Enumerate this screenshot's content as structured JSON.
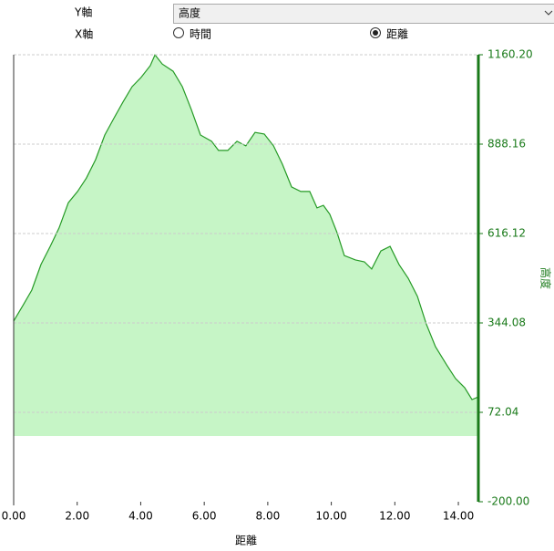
{
  "controls": {
    "y_axis_label": "Y軸",
    "y_axis_value": "高度",
    "x_axis_label": "X軸",
    "x_options": [
      {
        "label": "時間",
        "selected": false
      },
      {
        "label": "距離",
        "selected": true
      }
    ]
  },
  "chart_data": {
    "type": "area",
    "x_label": "距離",
    "y_label": "高度",
    "x": [
      0,
      0.29,
      0.57,
      0.86,
      1.15,
      1.43,
      1.72,
      2.01,
      2.29,
      2.58,
      2.87,
      3.15,
      3.44,
      3.73,
      4.01,
      4.3,
      4.45,
      4.68,
      5.02,
      5.31,
      5.59,
      5.88,
      6.23,
      6.45,
      6.74,
      7.03,
      7.31,
      7.6,
      7.89,
      8.18,
      8.46,
      8.75,
      9.04,
      9.32,
      9.55,
      9.75,
      9.95,
      10.18,
      10.41,
      10.76,
      11.04,
      11.27,
      11.56,
      11.85,
      12.13,
      12.42,
      12.71,
      12.99,
      13.28,
      13.63,
      13.91,
      14.2,
      14.43,
      14.63
    ],
    "series": [
      {
        "name": "高度",
        "color": "#259a25",
        "fill_color": "#c6f5c6",
        "values": [
          350,
          397,
          444,
          522,
          577,
          633,
          710,
          744,
          785,
          841,
          916,
          966,
          1016,
          1063,
          1091,
          1127,
          1160,
          1132,
          1110,
          1063,
          994,
          916,
          897,
          869,
          869,
          897,
          883,
          924,
          919,
          883,
          827,
          758,
          744,
          744,
          694,
          702,
          675,
          619,
          549,
          536,
          530,
          508,
          563,
          577,
          522,
          480,
          425,
          341,
          272,
          217,
          175,
          147,
          111,
          119
        ]
      }
    ],
    "xlim": [
      0,
      14.63
    ],
    "xticks": [
      {
        "value": 0,
        "label": "0.00"
      },
      {
        "value": 2,
        "label": "2.00"
      },
      {
        "value": 4,
        "label": "4.00"
      },
      {
        "value": 6,
        "label": "6.00"
      },
      {
        "value": 8,
        "label": "8.00"
      },
      {
        "value": 10,
        "label": "10.00"
      },
      {
        "value": 12,
        "label": "12.00"
      },
      {
        "value": 14,
        "label": "14.00"
      }
    ],
    "ylim": [
      -200,
      1160.2
    ],
    "yticks": [
      {
        "value": -200,
        "label": "-200.00"
      },
      72.04,
      344.08,
      616.12,
      888.16,
      {
        "value": 1160.2,
        "label": "1160.20"
      }
    ],
    "grid": true,
    "axis_color": "#1a7a1a"
  }
}
